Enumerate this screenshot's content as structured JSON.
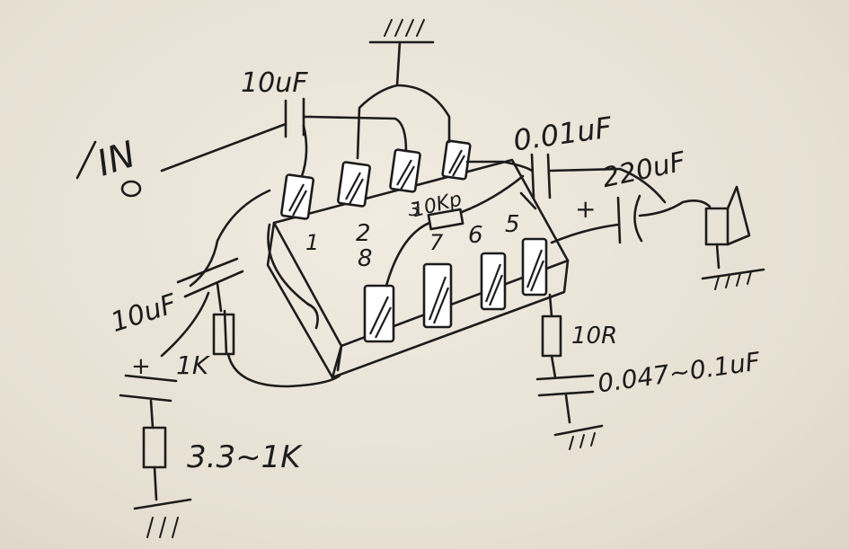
{
  "labels": {
    "cap_input": "10uF",
    "cap_output_small": "0.01uF",
    "cap_output_large": "220uF",
    "cap_bypass": "10uF",
    "res_bypass": "1K",
    "res_gain": "3.3~1K",
    "res_zobel": "10R",
    "cap_zobel": "0.047~0.1uF",
    "res_feedback": "10Kp",
    "input": "IN",
    "plus_output": "+",
    "plus_bypass": "+"
  },
  "pins": {
    "p1": "1",
    "p2": "2",
    "p3": "3",
    "p5": "5",
    "p6": "6",
    "p7": "7",
    "p8": "8"
  },
  "ground": {
    "top": "////",
    "speaker": "////",
    "zobel": "///",
    "bottom": "///"
  },
  "colors": {
    "ink": "#1c1c1c",
    "paper": "#ebe4d8"
  }
}
